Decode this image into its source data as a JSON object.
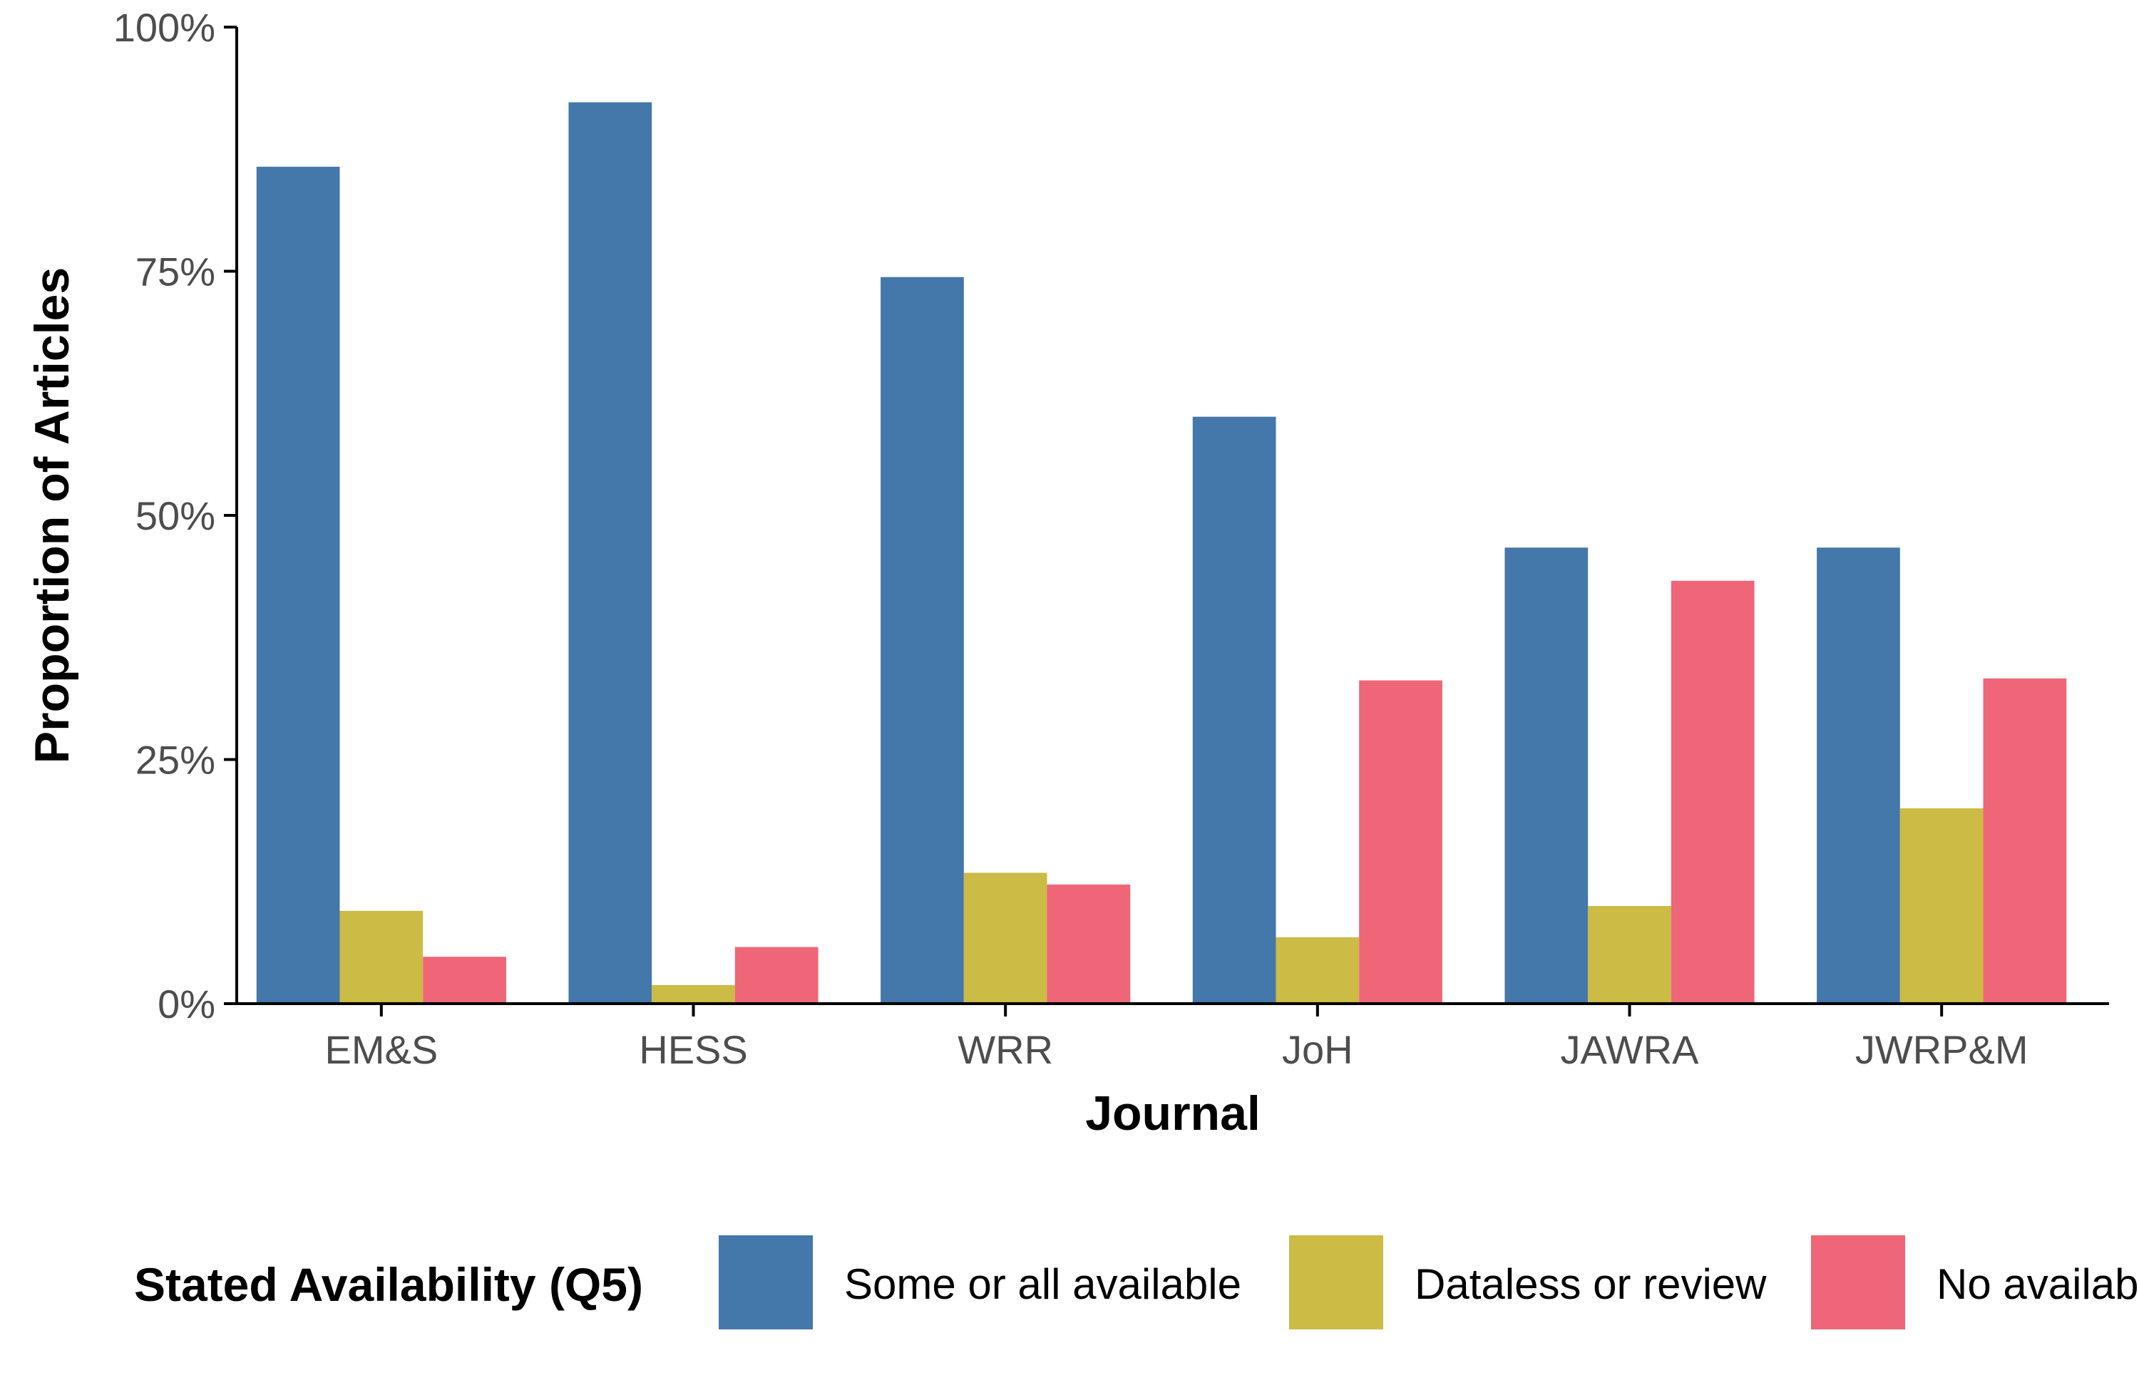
{
  "chart_data": {
    "type": "bar",
    "categories": [
      "EM&S",
      "HESS",
      "WRR",
      "JoH",
      "JAWRA",
      "JWRP&M"
    ],
    "series": [
      {
        "name": "Some or all available",
        "color": "#4477aa",
        "values": [
          85.7,
          92.3,
          74.4,
          60.1,
          46.7,
          46.7
        ]
      },
      {
        "name": "Dataless or review",
        "color": "#ccbb44",
        "values": [
          9.5,
          1.9,
          13.4,
          6.8,
          10.0,
          20.0
        ]
      },
      {
        "name": "No availability",
        "color": "#ee6677",
        "values": [
          4.8,
          5.8,
          12.2,
          33.1,
          43.3,
          33.3
        ]
      }
    ],
    "xlabel": "Journal",
    "ylabel": "Proportion of Articles",
    "ylim": [
      0,
      100
    ],
    "yticks": [
      "0%",
      "25%",
      "50%",
      "75%",
      "100%"
    ],
    "ytick_values": [
      0,
      25,
      50,
      75,
      100
    ],
    "legend": {
      "title": "Stated Availability (Q5)",
      "position": "bottom"
    },
    "grid": false
  }
}
